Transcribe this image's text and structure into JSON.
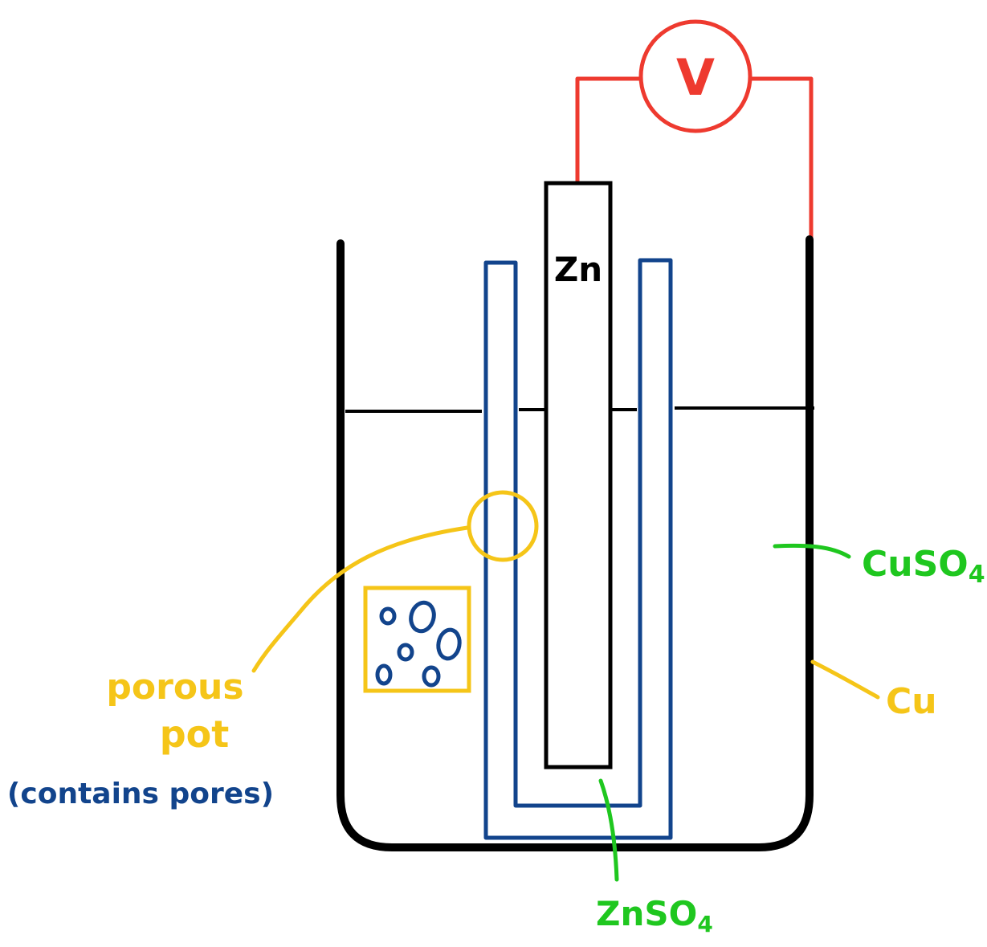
{
  "voltmeter": {
    "symbol": "V"
  },
  "labels": {
    "zinc_electrode": "Zn",
    "copper_sulfate": "CuSO",
    "copper_sulfate_subscript": "4",
    "copper": "Cu",
    "zinc_sulfate": "ZnSO",
    "zinc_sulfate_subscript": "4",
    "porous_pot_line1": "porous",
    "porous_pot_line2": "pot",
    "pores_note": "(contains pores)"
  },
  "colors": {
    "wire": "#ee3a2f",
    "beaker": "#000000",
    "pot": "#12448c",
    "annotation_yellow": "#f5c518",
    "annotation_green": "#1fc71f",
    "zinc_label": "#000000"
  }
}
